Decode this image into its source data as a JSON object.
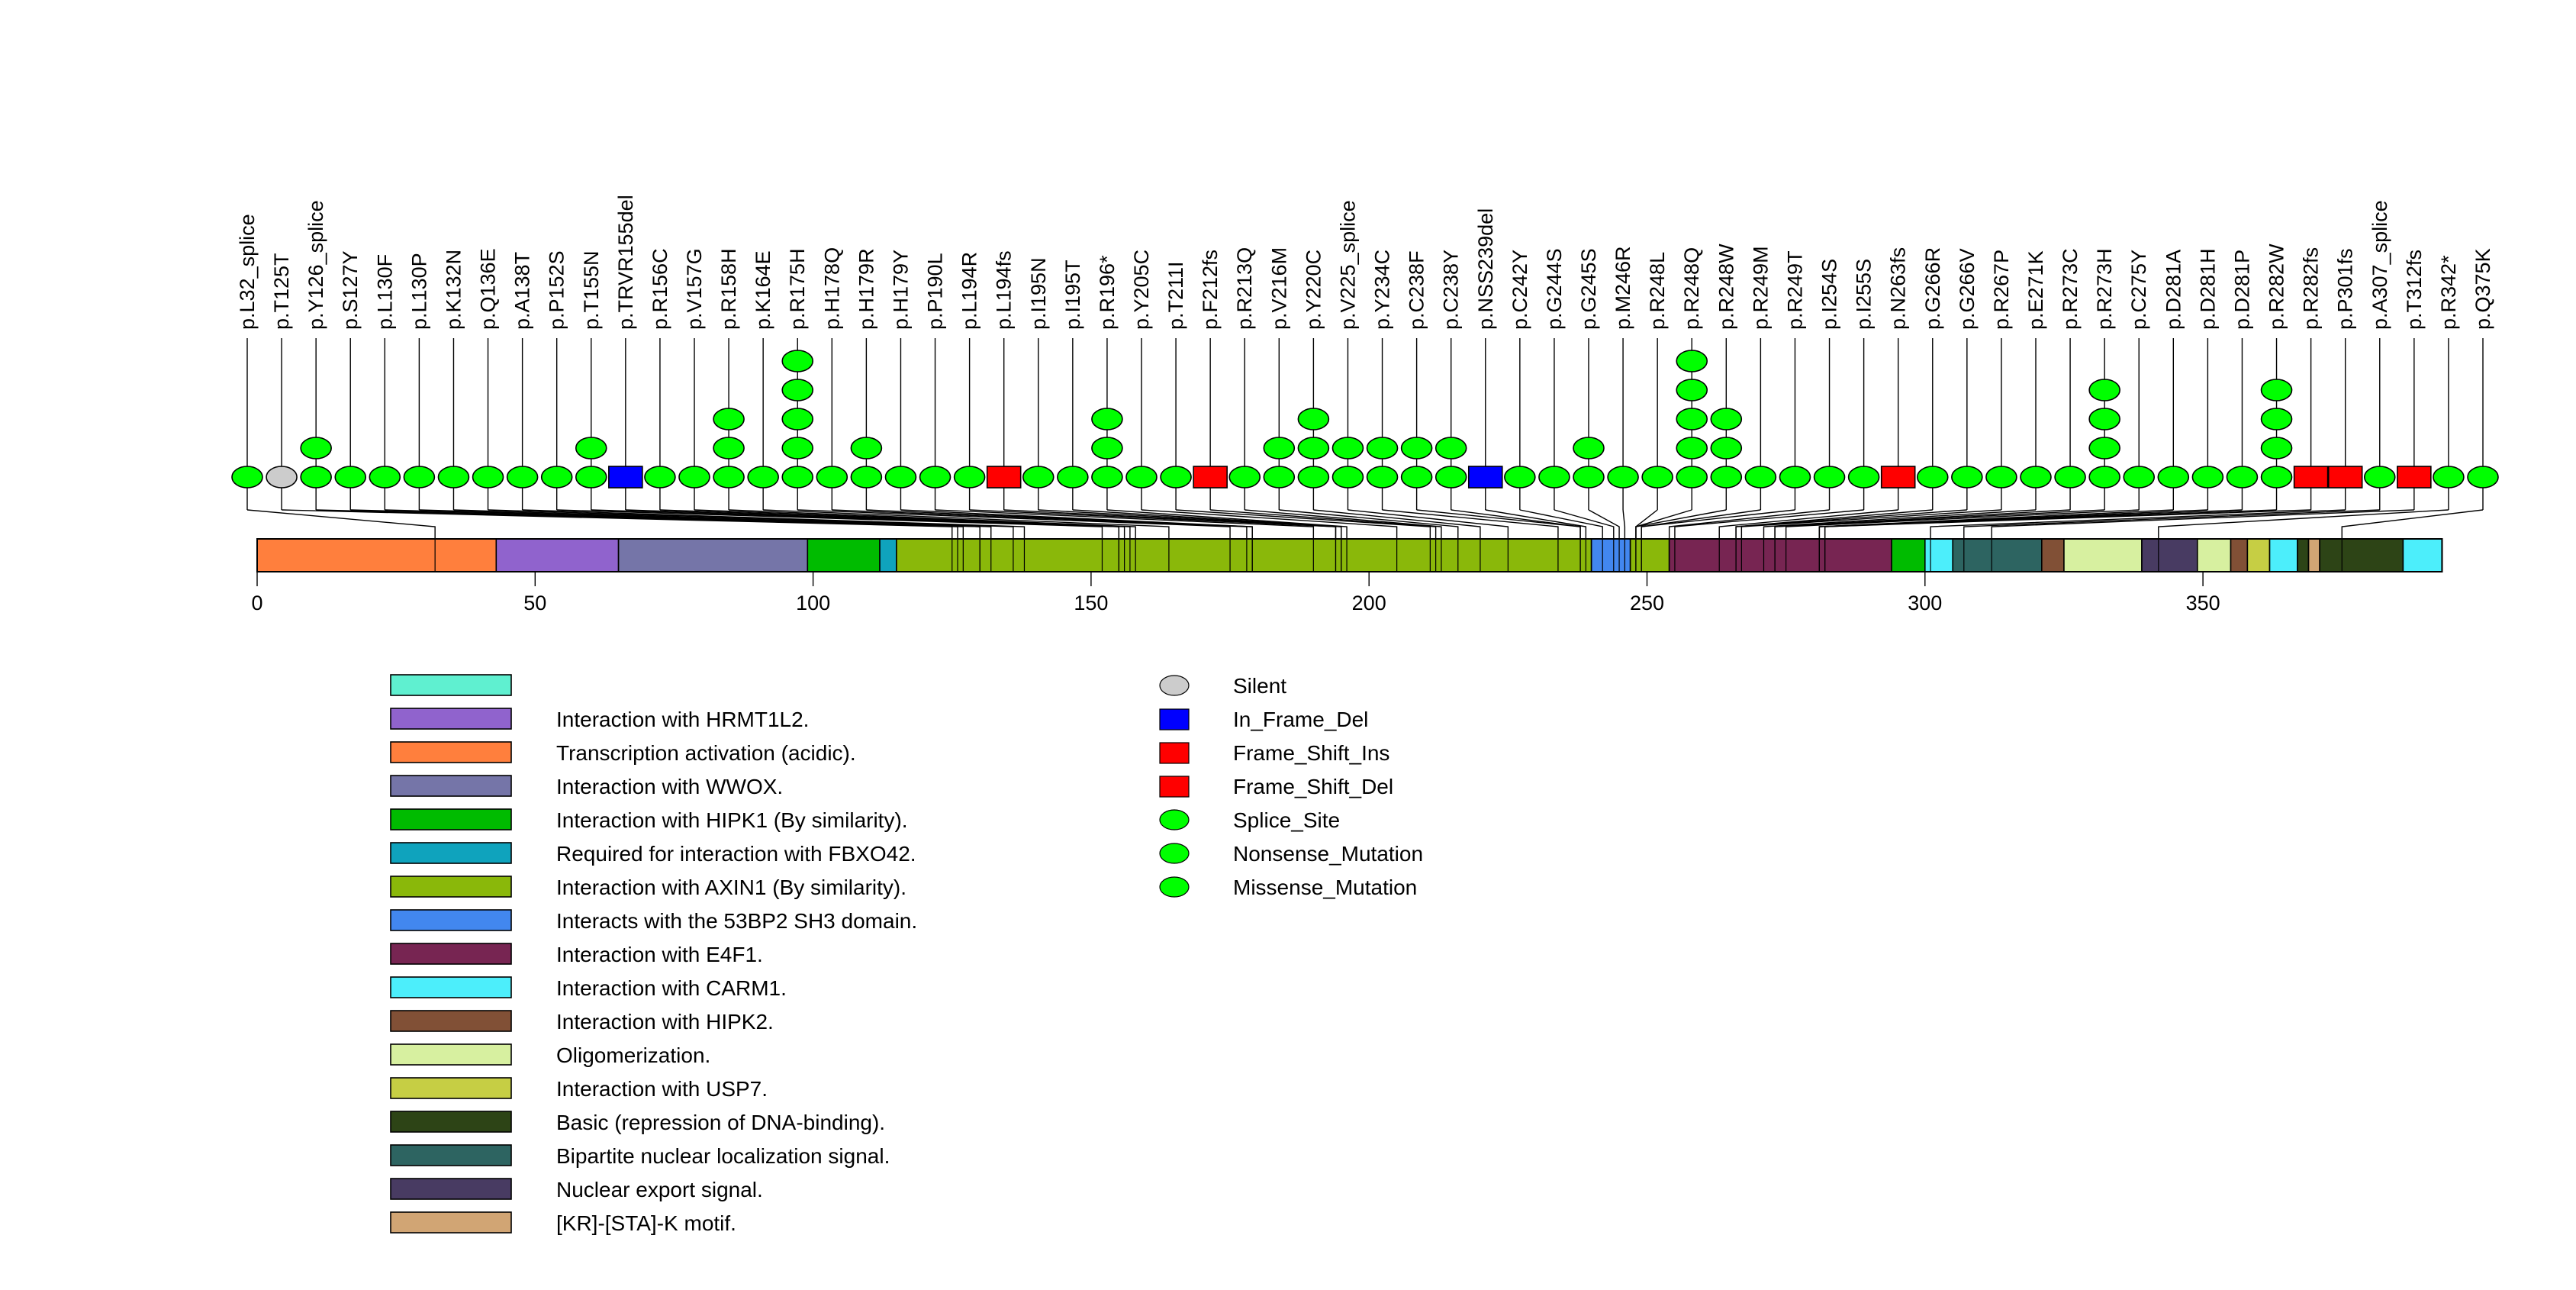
{
  "chart_data": {
    "type": "lollipop",
    "title": "",
    "xlabel": "",
    "ylabel": "",
    "protein_length": 393,
    "xlim": [
      0,
      393
    ],
    "x_ticks": [
      0,
      50,
      100,
      150,
      200,
      250,
      300,
      350
    ],
    "mutation_types": {
      "Silent": {
        "shape": "ellipse",
        "color": "#cccccc"
      },
      "In_Frame_Del": {
        "shape": "rect",
        "color": "#0000ff"
      },
      "Frame_Shift_Ins": {
        "shape": "rect",
        "color": "#ff0000"
      },
      "Frame_Shift_Del": {
        "shape": "rect",
        "color": "#ff0000"
      },
      "Splice_Site": {
        "shape": "ellipse",
        "color": "#00ff00"
      },
      "Nonsense_Mutation": {
        "shape": "ellipse",
        "color": "#00ff00"
      },
      "Missense_Mutation": {
        "shape": "ellipse",
        "color": "#00ff00"
      }
    },
    "mutations": [
      {
        "label": "p.L32_splice",
        "position": 32,
        "count": 1,
        "type": "Splice_Site"
      },
      {
        "label": "p.T125T",
        "position": 125,
        "count": 1,
        "type": "Silent"
      },
      {
        "label": "p.Y126_splice",
        "position": 126,
        "count": 2,
        "type": "Splice_Site"
      },
      {
        "label": "p.S127Y",
        "position": 127,
        "count": 1,
        "type": "Missense_Mutation"
      },
      {
        "label": "p.L130F",
        "position": 130,
        "count": 1,
        "type": "Missense_Mutation"
      },
      {
        "label": "p.L130P",
        "position": 130,
        "count": 1,
        "type": "Missense_Mutation"
      },
      {
        "label": "p.K132N",
        "position": 132,
        "count": 1,
        "type": "Missense_Mutation"
      },
      {
        "label": "p.Q136E",
        "position": 136,
        "count": 1,
        "type": "Missense_Mutation"
      },
      {
        "label": "p.A138T",
        "position": 138,
        "count": 1,
        "type": "Missense_Mutation"
      },
      {
        "label": "p.P152S",
        "position": 152,
        "count": 1,
        "type": "Missense_Mutation"
      },
      {
        "label": "p.T155N",
        "position": 155,
        "count": 2,
        "type": "Missense_Mutation"
      },
      {
        "label": "p.TRVR155del",
        "position": 155,
        "count": 1,
        "type": "In_Frame_Del"
      },
      {
        "label": "p.R156C",
        "position": 156,
        "count": 1,
        "type": "Missense_Mutation"
      },
      {
        "label": "p.V157G",
        "position": 157,
        "count": 1,
        "type": "Missense_Mutation"
      },
      {
        "label": "p.R158H",
        "position": 158,
        "count": 3,
        "type": "Missense_Mutation"
      },
      {
        "label": "p.K164E",
        "position": 164,
        "count": 1,
        "type": "Missense_Mutation"
      },
      {
        "label": "p.R175H",
        "position": 175,
        "count": 5,
        "type": "Missense_Mutation"
      },
      {
        "label": "p.H178Q",
        "position": 178,
        "count": 1,
        "type": "Missense_Mutation"
      },
      {
        "label": "p.H179R",
        "position": 179,
        "count": 2,
        "type": "Missense_Mutation"
      },
      {
        "label": "p.H179Y",
        "position": 179,
        "count": 1,
        "type": "Missense_Mutation"
      },
      {
        "label": "p.P190L",
        "position": 190,
        "count": 1,
        "type": "Missense_Mutation"
      },
      {
        "label": "p.L194R",
        "position": 194,
        "count": 1,
        "type": "Missense_Mutation"
      },
      {
        "label": "p.L194fs",
        "position": 194,
        "count": 1,
        "type": "Frame_Shift_Del"
      },
      {
        "label": "p.I195N",
        "position": 195,
        "count": 1,
        "type": "Missense_Mutation"
      },
      {
        "label": "p.I195T",
        "position": 195,
        "count": 1,
        "type": "Missense_Mutation"
      },
      {
        "label": "p.R196*",
        "position": 196,
        "count": 3,
        "type": "Nonsense_Mutation"
      },
      {
        "label": "p.Y205C",
        "position": 205,
        "count": 1,
        "type": "Missense_Mutation"
      },
      {
        "label": "p.T211I",
        "position": 211,
        "count": 1,
        "type": "Missense_Mutation"
      },
      {
        "label": "p.F212fs",
        "position": 212,
        "count": 1,
        "type": "Frame_Shift_Del"
      },
      {
        "label": "p.R213Q",
        "position": 213,
        "count": 1,
        "type": "Missense_Mutation"
      },
      {
        "label": "p.V216M",
        "position": 216,
        "count": 2,
        "type": "Missense_Mutation"
      },
      {
        "label": "p.Y220C",
        "position": 220,
        "count": 3,
        "type": "Missense_Mutation"
      },
      {
        "label": "p.V225_splice",
        "position": 225,
        "count": 2,
        "type": "Splice_Site"
      },
      {
        "label": "p.Y234C",
        "position": 234,
        "count": 2,
        "type": "Missense_Mutation"
      },
      {
        "label": "p.C238F",
        "position": 238,
        "count": 2,
        "type": "Missense_Mutation"
      },
      {
        "label": "p.C238Y",
        "position": 238,
        "count": 2,
        "type": "Missense_Mutation"
      },
      {
        "label": "p.NSS239del",
        "position": 239,
        "count": 1,
        "type": "In_Frame_Del"
      },
      {
        "label": "p.C242Y",
        "position": 242,
        "count": 1,
        "type": "Missense_Mutation"
      },
      {
        "label": "p.G244S",
        "position": 244,
        "count": 1,
        "type": "Missense_Mutation"
      },
      {
        "label": "p.G245S",
        "position": 245,
        "count": 2,
        "type": "Missense_Mutation"
      },
      {
        "label": "p.M246R",
        "position": 246,
        "count": 1,
        "type": "Missense_Mutation"
      },
      {
        "label": "p.R248L",
        "position": 248,
        "count": 1,
        "type": "Missense_Mutation"
      },
      {
        "label": "p.R248Q",
        "position": 248,
        "count": 5,
        "type": "Missense_Mutation"
      },
      {
        "label": "p.R248W",
        "position": 248,
        "count": 3,
        "type": "Missense_Mutation"
      },
      {
        "label": "p.R249M",
        "position": 249,
        "count": 1,
        "type": "Missense_Mutation"
      },
      {
        "label": "p.R249T",
        "position": 249,
        "count": 1,
        "type": "Missense_Mutation"
      },
      {
        "label": "p.I254S",
        "position": 254,
        "count": 1,
        "type": "Missense_Mutation"
      },
      {
        "label": "p.I255S",
        "position": 255,
        "count": 1,
        "type": "Missense_Mutation"
      },
      {
        "label": "p.N263fs",
        "position": 263,
        "count": 1,
        "type": "Frame_Shift_Del"
      },
      {
        "label": "p.G266R",
        "position": 266,
        "count": 1,
        "type": "Missense_Mutation"
      },
      {
        "label": "p.G266V",
        "position": 266,
        "count": 1,
        "type": "Missense_Mutation"
      },
      {
        "label": "p.R267P",
        "position": 267,
        "count": 1,
        "type": "Missense_Mutation"
      },
      {
        "label": "p.E271K",
        "position": 271,
        "count": 1,
        "type": "Missense_Mutation"
      },
      {
        "label": "p.R273C",
        "position": 273,
        "count": 1,
        "type": "Missense_Mutation"
      },
      {
        "label": "p.R273H",
        "position": 273,
        "count": 4,
        "type": "Missense_Mutation"
      },
      {
        "label": "p.C275Y",
        "position": 275,
        "count": 1,
        "type": "Missense_Mutation"
      },
      {
        "label": "p.D281A",
        "position": 281,
        "count": 1,
        "type": "Missense_Mutation"
      },
      {
        "label": "p.D281H",
        "position": 281,
        "count": 1,
        "type": "Missense_Mutation"
      },
      {
        "label": "p.D281P",
        "position": 281,
        "count": 1,
        "type": "Missense_Mutation"
      },
      {
        "label": "p.R282W",
        "position": 282,
        "count": 4,
        "type": "Missense_Mutation"
      },
      {
        "label": "p.R282fs",
        "position": 282,
        "count": 1,
        "type": "Frame_Shift_Del"
      },
      {
        "label": "p.P301fs",
        "position": 301,
        "count": 1,
        "type": "Frame_Shift_Del"
      },
      {
        "label": "p.A307_splice",
        "position": 307,
        "count": 1,
        "type": "Splice_Site"
      },
      {
        "label": "p.T312fs",
        "position": 312,
        "count": 1,
        "type": "Frame_Shift_Del"
      },
      {
        "label": "p.R342*",
        "position": 342,
        "count": 1,
        "type": "Nonsense_Mutation"
      },
      {
        "label": "p.Q375K",
        "position": 375,
        "count": 1,
        "type": "Missense_Mutation"
      }
    ],
    "domains": [
      {
        "start": 1,
        "end": 43,
        "color": "#ff7f3d",
        "name": "Transcription activation (acidic)."
      },
      {
        "start": 43,
        "end": 65,
        "color": "#9063cd",
        "name": "Interaction with HRMT1L2."
      },
      {
        "start": 65,
        "end": 99,
        "color": "#7575a8",
        "name": "Interaction with WWOX."
      },
      {
        "start": 99,
        "end": 112,
        "color": "#00bb00",
        "name": "Interaction with HIPK1 (By similarity)."
      },
      {
        "start": 112,
        "end": 115,
        "color": "#0fa3bd",
        "name": "Required for interaction with FBXO42."
      },
      {
        "start": 115,
        "end": 240,
        "color": "#8ab80a",
        "name": "Interaction with AXIN1 (By similarity)."
      },
      {
        "start": 240,
        "end": 247,
        "color": "#4287ef",
        "name": "Interacts with the 53BP2 SH3 domain."
      },
      {
        "start": 247,
        "end": 254,
        "color": "#8ab80a",
        "name": "Interaction with AXIN1 (By similarity)."
      },
      {
        "start": 254,
        "end": 294,
        "color": "#772552",
        "name": "Interaction with E4F1."
      },
      {
        "start": 294,
        "end": 300,
        "color": "#00bb00",
        "name": "Interaction with HIPK1 (By similarity)."
      },
      {
        "start": 300,
        "end": 305,
        "color": "#4ceefb",
        "name": "Interaction with CARM1."
      },
      {
        "start": 305,
        "end": 321,
        "color": "#2d6461",
        "name": "Bipartite nuclear localization signal."
      },
      {
        "start": 321,
        "end": 325,
        "color": "#815036",
        "name": "Interaction with HIPK2."
      },
      {
        "start": 325,
        "end": 339,
        "color": "#d7f0a0",
        "name": "Oligomerization."
      },
      {
        "start": 339,
        "end": 349,
        "color": "#483b62",
        "name": "Nuclear export signal."
      },
      {
        "start": 349,
        "end": 355,
        "color": "#d7f0a0",
        "name": "Oligomerization."
      },
      {
        "start": 355,
        "end": 358,
        "color": "#815036",
        "name": "Interaction with HIPK2."
      },
      {
        "start": 358,
        "end": 362,
        "color": "#c6ce44",
        "name": "Interaction with USP7."
      },
      {
        "start": 362,
        "end": 367,
        "color": "#4ceefb",
        "name": "Interaction with CARM1."
      },
      {
        "start": 367,
        "end": 369,
        "color": "#2d4416",
        "name": "Basic (repression of DNA-binding)."
      },
      {
        "start": 369,
        "end": 371,
        "color": "#d1a574",
        "name": "[KR]-[STA]-K motif."
      },
      {
        "start": 371,
        "end": 386,
        "color": "#2d4416",
        "name": "Basic (repression of DNA-binding)."
      },
      {
        "start": 386,
        "end": 393,
        "color": "#4ceefb",
        "name": "Interaction with CARM1."
      }
    ],
    "domain_legend": [
      {
        "label": "",
        "color": "#5ff0d0"
      },
      {
        "label": "Interaction with HRMT1L2.",
        "color": "#9063cd"
      },
      {
        "label": "Transcription activation (acidic).",
        "color": "#ff7f3d"
      },
      {
        "label": "Interaction with WWOX.",
        "color": "#7575a8"
      },
      {
        "label": "Interaction with HIPK1 (By similarity).",
        "color": "#00bb00"
      },
      {
        "label": "Required for interaction with FBXO42.",
        "color": "#0fa3bd"
      },
      {
        "label": "Interaction with AXIN1 (By similarity).",
        "color": "#8ab80a"
      },
      {
        "label": "Interacts with the 53BP2 SH3 domain.",
        "color": "#4287ef"
      },
      {
        "label": "Interaction with E4F1.",
        "color": "#772552"
      },
      {
        "label": "Interaction with CARM1.",
        "color": "#4ceefb"
      },
      {
        "label": "Interaction with HIPK2.",
        "color": "#815036"
      },
      {
        "label": "Oligomerization.",
        "color": "#d7f0a0"
      },
      {
        "label": "Interaction with USP7.",
        "color": "#c6ce44"
      },
      {
        "label": "Basic (repression of DNA-binding).",
        "color": "#2d4416"
      },
      {
        "label": "Bipartite nuclear localization signal.",
        "color": "#2d6461"
      },
      {
        "label": "Nuclear export signal.",
        "color": "#483b62"
      },
      {
        "label": "[KR]-[STA]-K motif.",
        "color": "#d1a574"
      }
    ],
    "type_legend": [
      {
        "label": "Silent",
        "shape": "ellipse",
        "color": "#cccccc"
      },
      {
        "label": "In_Frame_Del",
        "shape": "rect",
        "color": "#0000ff"
      },
      {
        "label": "Frame_Shift_Ins",
        "shape": "rect",
        "color": "#ff0000"
      },
      {
        "label": "Frame_Shift_Del",
        "shape": "rect",
        "color": "#ff0000"
      },
      {
        "label": "Splice_Site",
        "shape": "ellipse",
        "color": "#00ff00"
      },
      {
        "label": "Nonsense_Mutation",
        "shape": "ellipse",
        "color": "#00ff00"
      },
      {
        "label": "Missense_Mutation",
        "shape": "ellipse",
        "color": "#00ff00"
      }
    ]
  }
}
